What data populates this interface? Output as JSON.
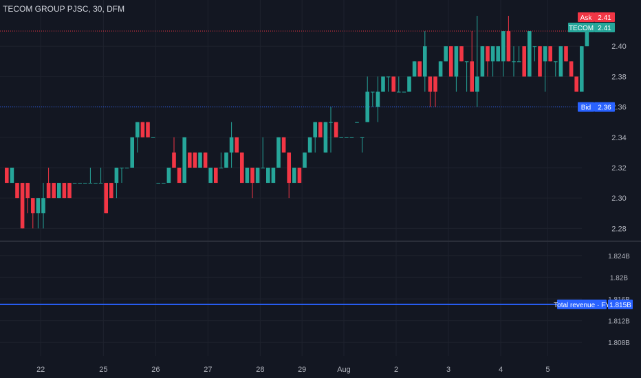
{
  "header": {
    "title": "TECOM GROUP PJSC, 30, DFM"
  },
  "colors": {
    "background": "#131722",
    "grid": "#1e222d",
    "up": "#26a69a",
    "down": "#f23645",
    "bid": "#2962ff",
    "ask": "#f23645",
    "revenue": "#2962ff",
    "text": "#b2b5be"
  },
  "price_labels": {
    "ask": {
      "name": "Ask",
      "value": "2.41"
    },
    "last": {
      "name": "TECOM",
      "value": "2.41"
    },
    "bid": {
      "name": "Bid",
      "value": "2.36"
    }
  },
  "revenue_label": {
    "name": "Total revenue · FY",
    "value": "1.815B"
  },
  "chart_data": [
    {
      "type": "candlestick",
      "title": "TECOM GROUP PJSC, 30, DFM",
      "ylim": [
        2.272,
        2.425
      ],
      "yticks": [
        "2.28",
        "2.30",
        "2.32",
        "2.34",
        "2.36",
        "2.38",
        "2.40"
      ],
      "xticks": [
        {
          "label": "22",
          "i": 7
        },
        {
          "label": "25",
          "i": 19
        },
        {
          "label": "26",
          "i": 29
        },
        {
          "label": "27",
          "i": 39
        },
        {
          "label": "28",
          "i": 49
        },
        {
          "label": "29",
          "i": 57
        },
        {
          "label": "Aug",
          "i": 65
        },
        {
          "label": "2",
          "i": 75
        },
        {
          "label": "3",
          "i": 85
        },
        {
          "label": "4",
          "i": 95
        },
        {
          "label": "5",
          "i": 104
        }
      ],
      "reference_lines": {
        "ask": 2.41,
        "bid": 2.36
      },
      "ohlc": [
        [
          2.32,
          2.32,
          2.31,
          2.31
        ],
        [
          2.31,
          2.32,
          2.31,
          2.32
        ],
        [
          2.31,
          2.31,
          2.3,
          2.3
        ],
        [
          2.31,
          2.31,
          2.28,
          2.28
        ],
        [
          2.31,
          2.31,
          2.29,
          2.3
        ],
        [
          2.3,
          2.3,
          2.28,
          2.29
        ],
        [
          2.29,
          2.3,
          2.28,
          2.3
        ],
        [
          2.29,
          2.31,
          2.28,
          2.3
        ],
        [
          2.31,
          2.32,
          2.3,
          2.3
        ],
        [
          2.31,
          2.31,
          2.3,
          2.3
        ],
        [
          2.3,
          2.31,
          2.3,
          2.31
        ],
        [
          2.31,
          2.31,
          2.3,
          2.3
        ],
        [
          2.31,
          2.31,
          2.3,
          2.3
        ],
        [
          2.31,
          2.31,
          2.31,
          2.31
        ],
        [
          2.31,
          2.31,
          2.31,
          2.31
        ],
        [
          2.31,
          2.31,
          2.31,
          2.31
        ],
        [
          2.31,
          2.32,
          2.31,
          2.31
        ],
        [
          2.31,
          2.31,
          2.31,
          2.31
        ],
        [
          2.31,
          2.32,
          2.31,
          2.31
        ],
        [
          2.31,
          2.31,
          2.29,
          2.29
        ],
        [
          2.31,
          2.31,
          2.3,
          2.3
        ],
        [
          2.31,
          2.32,
          2.3,
          2.32
        ],
        [
          2.32,
          2.32,
          2.31,
          2.32
        ],
        [
          2.32,
          2.32,
          2.32,
          2.32
        ],
        [
          2.32,
          2.34,
          2.32,
          2.34
        ],
        [
          2.34,
          2.35,
          2.33,
          2.35
        ],
        [
          2.35,
          2.35,
          2.34,
          2.34
        ],
        [
          2.35,
          2.35,
          2.34,
          2.34
        ],
        [
          2.34,
          2.34,
          2.34,
          2.34
        ],
        [
          2.31,
          2.31,
          2.31,
          2.31
        ],
        [
          2.31,
          2.31,
          2.31,
          2.31
        ],
        [
          2.31,
          2.32,
          2.31,
          2.32
        ],
        [
          2.33,
          2.34,
          2.32,
          2.32
        ],
        [
          2.32,
          2.32,
          2.31,
          2.31
        ],
        [
          2.31,
          2.34,
          2.31,
          2.34
        ],
        [
          2.33,
          2.33,
          2.32,
          2.32
        ],
        [
          2.33,
          2.33,
          2.32,
          2.32
        ],
        [
          2.32,
          2.33,
          2.32,
          2.33
        ],
        [
          2.33,
          2.33,
          2.32,
          2.32
        ],
        [
          2.31,
          2.32,
          2.31,
          2.32
        ],
        [
          2.32,
          2.32,
          2.31,
          2.31
        ],
        [
          2.32,
          2.33,
          2.32,
          2.32
        ],
        [
          2.32,
          2.33,
          2.32,
          2.33
        ],
        [
          2.33,
          2.35,
          2.32,
          2.34
        ],
        [
          2.34,
          2.34,
          2.33,
          2.33
        ],
        [
          2.33,
          2.33,
          2.31,
          2.31
        ],
        [
          2.31,
          2.32,
          2.31,
          2.32
        ],
        [
          2.32,
          2.32,
          2.3,
          2.31
        ],
        [
          2.31,
          2.32,
          2.31,
          2.32
        ],
        [
          2.32,
          2.34,
          2.32,
          2.32
        ],
        [
          2.31,
          2.32,
          2.31,
          2.32
        ],
        [
          2.31,
          2.32,
          2.31,
          2.32
        ],
        [
          2.32,
          2.34,
          2.32,
          2.34
        ],
        [
          2.34,
          2.34,
          2.33,
          2.33
        ],
        [
          2.33,
          2.33,
          2.3,
          2.31
        ],
        [
          2.31,
          2.32,
          2.31,
          2.32
        ],
        [
          2.32,
          2.32,
          2.31,
          2.31
        ],
        [
          2.32,
          2.33,
          2.32,
          2.33
        ],
        [
          2.33,
          2.34,
          2.33,
          2.34
        ],
        [
          2.34,
          2.35,
          2.33,
          2.35
        ],
        [
          2.35,
          2.35,
          2.34,
          2.34
        ],
        [
          2.33,
          2.35,
          2.33,
          2.35
        ],
        [
          2.35,
          2.36,
          2.33,
          2.35
        ],
        [
          2.35,
          2.35,
          2.34,
          2.34
        ],
        [
          2.34,
          2.34,
          2.34,
          2.34
        ],
        [
          2.34,
          2.34,
          2.34,
          2.34
        ],
        [
          2.34,
          2.34,
          2.34,
          2.34
        ],
        [
          2.35,
          2.35,
          2.35,
          2.35
        ],
        [
          2.34,
          2.34,
          2.33,
          2.34
        ],
        [
          2.35,
          2.38,
          2.35,
          2.37
        ],
        [
          2.37,
          2.37,
          2.36,
          2.37
        ],
        [
          2.36,
          2.38,
          2.35,
          2.37
        ],
        [
          2.37,
          2.38,
          2.37,
          2.38
        ],
        [
          2.38,
          2.38,
          2.37,
          2.38
        ],
        [
          2.38,
          2.38,
          2.37,
          2.37
        ],
        [
          2.37,
          2.38,
          2.37,
          2.37
        ],
        [
          2.37,
          2.37,
          2.37,
          2.37
        ],
        [
          2.37,
          2.38,
          2.37,
          2.38
        ],
        [
          2.38,
          2.39,
          2.38,
          2.39
        ],
        [
          2.39,
          2.39,
          2.38,
          2.38
        ],
        [
          2.38,
          2.41,
          2.37,
          2.4
        ],
        [
          2.38,
          2.38,
          2.36,
          2.37
        ],
        [
          2.38,
          2.38,
          2.36,
          2.37
        ],
        [
          2.38,
          2.39,
          2.38,
          2.39
        ],
        [
          2.39,
          2.4,
          2.39,
          2.4
        ],
        [
          2.4,
          2.4,
          2.38,
          2.38
        ],
        [
          2.38,
          2.4,
          2.37,
          2.4
        ],
        [
          2.4,
          2.4,
          2.39,
          2.39
        ],
        [
          2.39,
          2.39,
          2.37,
          2.39
        ],
        [
          2.39,
          2.41,
          2.37,
          2.37
        ],
        [
          2.37,
          2.42,
          2.36,
          2.38
        ],
        [
          2.38,
          2.4,
          2.38,
          2.4
        ],
        [
          2.4,
          2.4,
          2.38,
          2.39
        ],
        [
          2.39,
          2.4,
          2.38,
          2.4
        ],
        [
          2.39,
          2.4,
          2.39,
          2.4
        ],
        [
          2.39,
          2.41,
          2.38,
          2.41
        ],
        [
          2.41,
          2.42,
          2.39,
          2.39
        ],
        [
          2.39,
          2.4,
          2.38,
          2.39
        ],
        [
          2.39,
          2.4,
          2.39,
          2.39
        ],
        [
          2.4,
          2.4,
          2.38,
          2.38
        ],
        [
          2.38,
          2.41,
          2.38,
          2.41
        ],
        [
          2.4,
          2.4,
          2.39,
          2.4
        ],
        [
          2.4,
          2.4,
          2.38,
          2.38
        ],
        [
          2.39,
          2.4,
          2.37,
          2.4
        ],
        [
          2.4,
          2.4,
          2.39,
          2.39
        ],
        [
          2.39,
          2.39,
          2.38,
          2.39
        ],
        [
          2.38,
          2.4,
          2.38,
          2.4
        ],
        [
          2.4,
          2.4,
          2.39,
          2.39
        ],
        [
          2.39,
          2.39,
          2.38,
          2.38
        ],
        [
          2.38,
          2.38,
          2.37,
          2.37
        ],
        [
          2.37,
          2.4,
          2.37,
          2.4
        ],
        [
          2.4,
          2.41,
          2.4,
          2.41
        ]
      ]
    },
    {
      "type": "line",
      "series": [
        {
          "name": "Total revenue · FY",
          "values": [
            1.815
          ]
        }
      ],
      "ylim": [
        1.8055,
        1.8265
      ],
      "yticks": [
        "1.808B",
        "1.812B",
        "1.816B",
        "1.82B",
        "1.824B"
      ],
      "unit": "B"
    }
  ]
}
